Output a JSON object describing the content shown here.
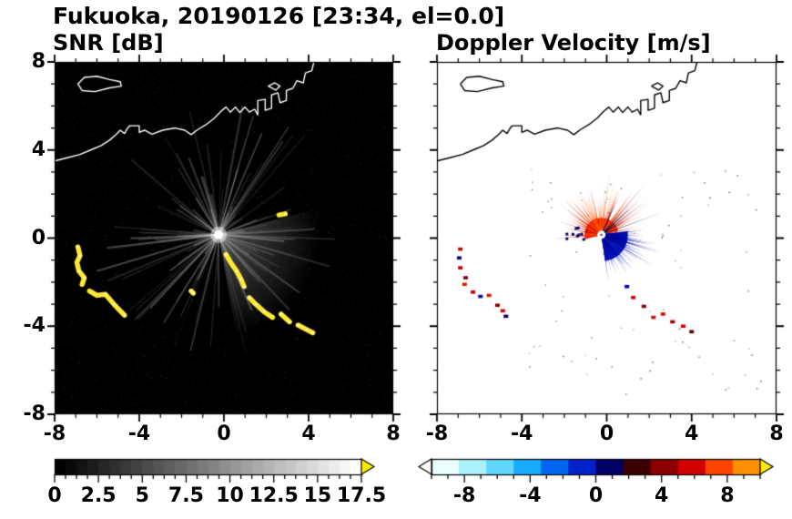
{
  "title": "Fukuoka, 20190126 [23:34, el=0.0]",
  "chart_data": {
    "type": "heatmap",
    "subtype": "radar-ppi-pair",
    "title": "Fukuoka, 20190126 [23:34, el=0.0]",
    "axes_unit": "km",
    "axes": {
      "xlim": [
        -8,
        8
      ],
      "ylim": [
        -8,
        8
      ],
      "xticks": [
        -8,
        -4,
        0,
        4,
        8
      ],
      "yticks": [
        -8,
        -4,
        0,
        4,
        8
      ],
      "xtick_labels": [
        "-8",
        "-4",
        "0",
        "4",
        "8"
      ],
      "ytick_labels": [
        "-8",
        "-4",
        "0",
        "4",
        "8"
      ],
      "minor_step": 1,
      "grid": false
    },
    "observations": [
      "SNR panel: grayscale radial beams from radar at origin reaching ~6 km, brightest fan toward the southeast",
      "High-SNR yellow clutter arcs 5-7.5 km west-southwest of radar and a broken chain 1-4.5 km to the south-southeast",
      "Doppler panel: receding flow (red/orange, +2 to +8 m/s) north of radar; approaching flow (blue, -2 to -8 m/s) southeast of radar",
      "Fukuoka coastline and harbor drawn across the upper part of both panels; island offshore at upper left"
    ],
    "panels": [
      {
        "title": "SNR [dB]",
        "background": "#000000",
        "coastline_color": "#ffffff",
        "radar_center": [
          -0.25,
          0.15
        ],
        "speckle": {
          "seed": 5,
          "count": 1800
        },
        "rays": {
          "seed": 42,
          "count": 120,
          "min_len": 1.0,
          "max_len": 6.2,
          "min_alpha": 0.05,
          "max_alpha": 0.3
        },
        "bright_fan": {
          "start_deg": -80,
          "end_deg": 15,
          "radius": 4.8,
          "alpha": 0.3
        },
        "clutter_color": "#ffe833",
        "clutter_chains": [
          [
            [
              -6.9,
              -0.4
            ],
            [
              -6.8,
              -0.8
            ],
            [
              -6.95,
              -1.1
            ],
            [
              -6.85,
              -1.5
            ],
            [
              -6.6,
              -1.8
            ],
            [
              -6.7,
              -2.1
            ]
          ],
          [
            [
              -6.35,
              -2.4
            ],
            [
              -6.0,
              -2.6
            ],
            [
              -5.6,
              -2.55
            ],
            [
              -5.2,
              -3.0
            ],
            [
              -4.9,
              -3.3
            ],
            [
              -4.7,
              -3.5
            ]
          ],
          [
            [
              0.1,
              -0.75
            ],
            [
              0.35,
              -1.15
            ],
            [
              0.6,
              -1.5
            ],
            [
              0.8,
              -1.85
            ],
            [
              0.95,
              -2.2
            ]
          ],
          [
            [
              1.2,
              -2.7
            ],
            [
              1.5,
              -3.0
            ],
            [
              1.9,
              -3.35
            ],
            [
              2.3,
              -3.6
            ]
          ],
          [
            [
              2.7,
              -3.45
            ],
            [
              3.1,
              -3.8
            ]
          ],
          [
            [
              3.5,
              -3.95
            ],
            [
              3.9,
              -4.15
            ],
            [
              4.2,
              -4.3
            ]
          ],
          [
            [
              -1.55,
              -2.4
            ],
            [
              -1.45,
              -2.5
            ]
          ],
          [
            [
              2.6,
              1.05
            ],
            [
              2.9,
              1.1
            ]
          ]
        ]
      },
      {
        "title": "Doppler Velocity [m/s]",
        "background": "#ffffff",
        "coastline_color": "#000000",
        "radar_center": [
          -0.25,
          0.15
        ],
        "receding": {
          "seed": 7,
          "start_deg": 12,
          "end_deg": 195,
          "count": 150,
          "base_radius": 0.8,
          "min_len": 0.5,
          "max_len": 2.5,
          "colors": [
            "#ee2200",
            "#ff3300",
            "#ff5500",
            "#cc1100",
            "#ff6600"
          ]
        },
        "receding_long": {
          "seed": 8,
          "start_deg": 35,
          "end_deg": 95,
          "count": 14,
          "min_len": 2.0,
          "max_len": 3.1,
          "colors": [
            "#ff6600",
            "#ff3300"
          ]
        },
        "navy_spikes": {
          "seed": 10,
          "start_deg": 18,
          "end_deg": 80,
          "count": 12,
          "min_len": 1.5,
          "max_len": 3.2,
          "colors": [
            "#000066",
            "#000044"
          ]
        },
        "approaching": {
          "seed": 9,
          "start_deg": -82,
          "end_deg": 8,
          "count": 140,
          "base_radius": 1.25,
          "min_len": 0.6,
          "max_len": 2.4,
          "colors": [
            "#0011bb",
            "#000099",
            "#2233cc",
            "#000077"
          ]
        },
        "approaching_long": {
          "seed": 21,
          "start_deg": -35,
          "end_deg": 5,
          "count": 8,
          "min_len": 2.3,
          "max_len": 3.3,
          "colors": [
            "#0000aa",
            "#000088"
          ]
        },
        "west_specks": {
          "seed": 11,
          "start_deg": 160,
          "end_deg": 205,
          "count": 10,
          "min_len": 0.6,
          "max_len": 1.9,
          "dots": true,
          "colors": [
            "#cc1100",
            "#000066"
          ]
        },
        "speckle": {
          "seed": 13,
          "count": 80
        },
        "clutter_marks": [
          [
            -6.9,
            -0.5,
            "#cc0000"
          ],
          [
            -6.95,
            -0.9,
            "#000088"
          ],
          [
            -6.9,
            -1.35,
            "#cc0000"
          ],
          [
            -6.65,
            -1.8,
            "#880000"
          ],
          [
            -6.7,
            -2.1,
            "#cc2200"
          ],
          [
            -6.3,
            -2.45,
            "#cc0000"
          ],
          [
            -5.95,
            -2.65,
            "#000099"
          ],
          [
            -5.55,
            -2.6,
            "#cc2200"
          ],
          [
            -5.15,
            -3.05,
            "#880000"
          ],
          [
            -4.9,
            -3.3,
            "#cc0000"
          ],
          [
            -4.75,
            -3.55,
            "#000066"
          ],
          [
            0.95,
            -2.2,
            "#0000aa"
          ],
          [
            1.25,
            -2.7,
            "#cc0000"
          ],
          [
            1.75,
            -3.1,
            "#880000"
          ],
          [
            2.2,
            -3.6,
            "#cc1100"
          ],
          [
            2.65,
            -3.45,
            "#cc1100"
          ],
          [
            3.1,
            -3.8,
            "#990000"
          ],
          [
            3.6,
            -4.0,
            "#cc0000"
          ],
          [
            4.0,
            -4.25,
            "#660000"
          ]
        ]
      }
    ],
    "coastline_km": {
      "mainland": [
        [
          -8.0,
          3.5
        ],
        [
          -7.4,
          3.65
        ],
        [
          -6.8,
          3.8
        ],
        [
          -6.3,
          4.0
        ],
        [
          -5.8,
          4.2
        ],
        [
          -5.4,
          4.45
        ],
        [
          -5.1,
          4.7
        ],
        [
          -4.9,
          4.9
        ],
        [
          -4.7,
          4.75
        ],
        [
          -4.55,
          5.0
        ],
        [
          -4.45,
          5.1
        ],
        [
          -4.0,
          5.1
        ],
        [
          -4.0,
          4.8
        ],
        [
          -3.75,
          4.9
        ],
        [
          -3.4,
          4.72
        ],
        [
          -2.9,
          4.9
        ],
        [
          -2.3,
          5.0
        ],
        [
          -1.85,
          4.9
        ],
        [
          -1.55,
          4.7
        ],
        [
          -1.25,
          4.92
        ],
        [
          -0.85,
          5.15
        ],
        [
          -0.45,
          5.45
        ],
        [
          -0.12,
          5.78
        ],
        [
          0.1,
          5.95
        ],
        [
          0.3,
          5.72
        ],
        [
          0.55,
          5.95
        ],
        [
          0.75,
          5.7
        ],
        [
          1.0,
          5.95
        ],
        [
          1.2,
          5.72
        ],
        [
          1.45,
          5.85
        ],
        [
          1.6,
          5.6
        ],
        [
          1.6,
          6.25
        ],
        [
          1.95,
          6.3
        ],
        [
          1.95,
          5.8
        ],
        [
          2.25,
          5.9
        ],
        [
          2.25,
          6.5
        ],
        [
          2.55,
          6.6
        ],
        [
          2.65,
          6.15
        ],
        [
          2.95,
          6.25
        ],
        [
          2.95,
          6.7
        ],
        [
          3.25,
          6.8
        ],
        [
          3.45,
          7.15
        ],
        [
          3.75,
          7.05
        ],
        [
          3.85,
          7.5
        ],
        [
          4.15,
          7.6
        ],
        [
          4.25,
          8.0
        ]
      ],
      "island": [
        [
          -6.9,
          7.0
        ],
        [
          -6.6,
          7.3
        ],
        [
          -6.0,
          7.35
        ],
        [
          -5.4,
          7.2
        ],
        [
          -4.9,
          7.1
        ],
        [
          -4.85,
          6.9
        ],
        [
          -5.4,
          6.82
        ],
        [
          -6.1,
          6.65
        ],
        [
          -6.7,
          6.7
        ],
        [
          -6.9,
          7.0
        ]
      ],
      "dock": [
        [
          2.1,
          6.9
        ],
        [
          2.4,
          7.05
        ],
        [
          2.65,
          6.9
        ],
        [
          2.45,
          6.72
        ],
        [
          2.1,
          6.9
        ]
      ]
    },
    "colorbars": [
      {
        "for_panel": "SNR [dB]",
        "range": [
          0,
          17.5
        ],
        "tick_values": [
          0,
          2.5,
          5,
          7.5,
          10,
          12.5,
          15,
          17.5
        ],
        "tick_labels": [
          "0",
          "2.5",
          "5",
          "7.5",
          "10",
          "12.5",
          "15",
          "17.5"
        ],
        "minor_step": 0.625,
        "style": "grayscale",
        "start_color": "#000000",
        "end_color": "#ffffff",
        "over_arrow_color": "#ffee00"
      },
      {
        "for_panel": "Doppler Velocity [m/s]",
        "range": [
          -10,
          10
        ],
        "tick_values": [
          -8,
          -4,
          0,
          4,
          8
        ],
        "tick_labels": [
          "-8",
          "-4",
          "0",
          "4",
          "8"
        ],
        "minor_step": 1,
        "segment_colors": [
          "#eaffff",
          "#aaf2ff",
          "#5fd7ff",
          "#18aaff",
          "#0066f0",
          "#0022cc",
          "#000066",
          "#3c0000",
          "#8c0000",
          "#d40000",
          "#ff4400",
          "#ff9100"
        ],
        "under_arrow_color": "#ffffff",
        "over_arrow_color": "#ffee00"
      }
    ]
  }
}
